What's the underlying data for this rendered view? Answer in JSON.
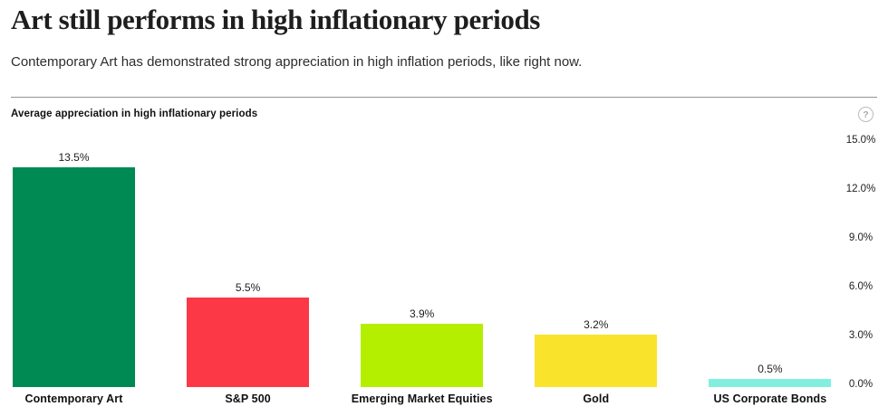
{
  "header": {
    "title": "Art still performs in high inflationary periods",
    "subtitle": "Contemporary Art has demonstrated strong appreciation in high inflation periods, like right now."
  },
  "chart_header": {
    "label": "Average appreciation in high inflationary periods",
    "help_glyph": "?"
  },
  "chart_data": {
    "type": "bar",
    "title": "Average appreciation in high inflationary periods",
    "categories": [
      "Contemporary Art",
      "S&P 500",
      "Emerging Market Equities",
      "Gold",
      "US Corporate Bonds"
    ],
    "values": [
      13.5,
      5.5,
      3.9,
      3.2,
      0.5
    ],
    "value_labels": [
      "13.5%",
      "5.5%",
      "3.9%",
      "3.2%",
      "0.5%"
    ],
    "bar_colors": [
      "#008A53",
      "#FC3847",
      "#B5EF00",
      "#FAE32B",
      "#82EFDE"
    ],
    "xlabel": "",
    "ylabel": "",
    "ylim": [
      0,
      15
    ],
    "yticks": {
      "values": [
        0,
        3,
        6,
        9,
        12,
        15
      ],
      "labels": [
        "0.0%",
        "3.0%",
        "6.0%",
        "9.0%",
        "12.0%",
        "15.0%"
      ]
    },
    "grid": false,
    "legend": false,
    "axis_side": "right",
    "background": "#ffffff"
  }
}
